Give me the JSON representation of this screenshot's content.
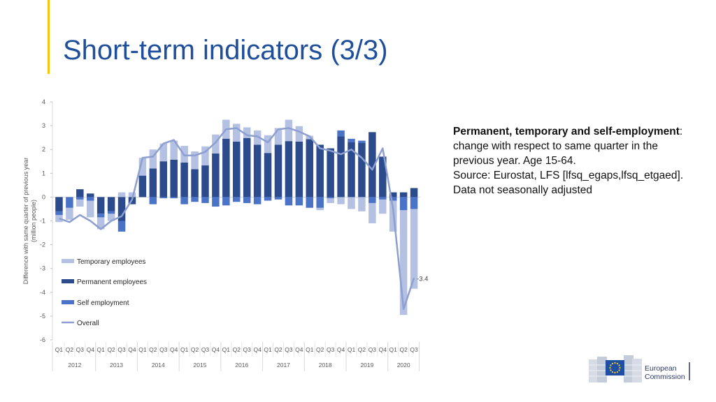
{
  "slide": {
    "title": "Short-term indicators (3/3)",
    "accent_color": "#f2c811"
  },
  "note": {
    "heading": "Permanent, temporary and self-employment",
    "heading_suffix": ":",
    "lines": [
      "change with respect to same quarter in the",
      "previous year. Age 15-64.",
      "Source: Eurostat, LFS [lfsq_egaps,lfsq_etgaed].",
      "Data not seasonally adjusted"
    ]
  },
  "logo": {
    "line1": "European",
    "line2": "Commission",
    "icon": "eu-flag-icon"
  },
  "chart_data": {
    "type": "bar",
    "stacked": true,
    "ylabel_line1": "Difference with same quarter of previous year",
    "ylabel_line2": "(million people)",
    "ylim": [
      -6,
      4
    ],
    "yticks": [
      -6,
      -5,
      -4,
      -3,
      -2,
      -1,
      0,
      1,
      2,
      3,
      4
    ],
    "quarter_labels": [
      "Q1",
      "Q2",
      "Q3",
      "Q4",
      "Q1",
      "Q2",
      "Q3",
      "Q4",
      "Q1",
      "Q2",
      "Q3",
      "Q4",
      "Q1",
      "Q2",
      "Q3",
      "Q4",
      "Q1",
      "Q2",
      "Q3",
      "Q4",
      "Q1",
      "Q2",
      "Q3",
      "Q4",
      "Q1",
      "Q2",
      "Q3",
      "Q4",
      "Q1",
      "Q2",
      "Q3",
      "Q4",
      "Q1",
      "Q2",
      "Q3"
    ],
    "years": [
      {
        "label": "2012",
        "count": 4
      },
      {
        "label": "2013",
        "count": 4
      },
      {
        "label": "2014",
        "count": 4
      },
      {
        "label": "2015",
        "count": 4
      },
      {
        "label": "2016",
        "count": 4
      },
      {
        "label": "2017",
        "count": 4
      },
      {
        "label": "2018",
        "count": 4
      },
      {
        "label": "2019",
        "count": 4
      },
      {
        "label": "2020",
        "count": 3
      }
    ],
    "series": [
      {
        "name": "Temporary employees",
        "color": "#b4c1e3",
        "values": [
          -0.3,
          -0.5,
          -0.3,
          -0.7,
          -0.5,
          -0.3,
          0.2,
          0.2,
          0.75,
          0.8,
          0.75,
          0.8,
          0.7,
          0.75,
          0.8,
          0.8,
          0.8,
          0.75,
          0.45,
          0.6,
          0.75,
          0.7,
          0.9,
          0.65,
          0.15,
          -0.1,
          -0.2,
          -0.3,
          -0.5,
          -0.6,
          -0.85,
          -0.6,
          -1.3,
          -4.4,
          -3.35
        ]
      },
      {
        "name": "Permanent employees",
        "color": "#2b4b8c",
        "values": [
          -0.6,
          0.0,
          0.33,
          0.15,
          -0.7,
          -0.6,
          -1.0,
          -0.3,
          0.9,
          1.2,
          1.5,
          1.57,
          1.45,
          1.17,
          1.33,
          1.83,
          2.45,
          2.33,
          2.48,
          2.2,
          1.85,
          2.2,
          2.35,
          2.33,
          2.43,
          2.2,
          2.05,
          2.55,
          2.3,
          2.27,
          2.73,
          1.7,
          0.2,
          0.2,
          0.38
        ]
      },
      {
        "name": "Self employment",
        "color": "#4a73c7",
        "values": [
          -0.15,
          -0.45,
          -0.1,
          -0.15,
          -0.15,
          -0.1,
          -0.45,
          0.0,
          0.0,
          -0.3,
          -0.05,
          -0.05,
          -0.3,
          -0.2,
          -0.25,
          -0.4,
          -0.35,
          -0.2,
          -0.25,
          -0.3,
          -0.15,
          -0.1,
          -0.35,
          -0.35,
          -0.45,
          -0.45,
          -0.05,
          0.25,
          0.15,
          0.1,
          -0.25,
          -0.1,
          -0.15,
          -0.55,
          -0.5
        ]
      }
    ],
    "overall": {
      "name": "Overall",
      "color": "#8d9fd0",
      "values": [
        -0.9,
        -1.05,
        -0.75,
        -1.0,
        -1.35,
        -1.0,
        -0.8,
        -0.1,
        1.65,
        1.7,
        2.25,
        2.4,
        1.75,
        1.75,
        1.9,
        2.3,
        2.85,
        2.9,
        2.6,
        2.55,
        2.3,
        2.85,
        2.9,
        2.75,
        2.55,
        2.05,
        1.95,
        1.8,
        2.0,
        1.65,
        1.15,
        2.05,
        -0.5,
        -4.7,
        -3.4
      ]
    },
    "end_label": "-3.4",
    "legend_position": "bottom-left inside plot"
  }
}
